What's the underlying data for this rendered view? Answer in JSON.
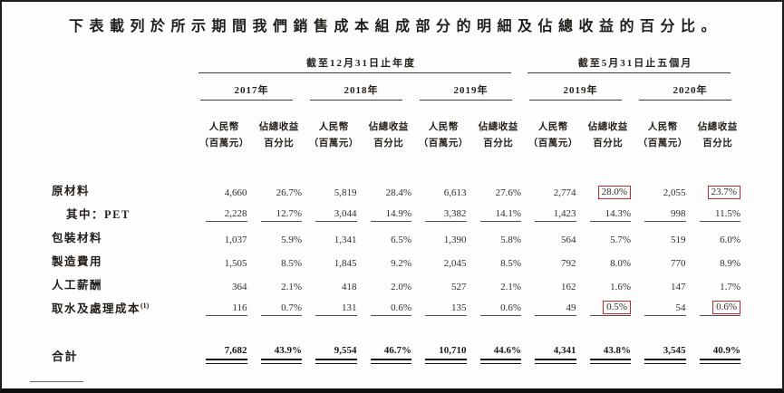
{
  "page": {
    "title": "下表載列於所示期間我們銷售成本組成部分的明細及佔總收益的百分比。"
  },
  "table": {
    "groups": [
      {
        "label": "截至12月31日止年度"
      },
      {
        "label": "截至5月31日止五個月"
      }
    ],
    "years": [
      "2017年",
      "2018年",
      "2019年",
      "2019年",
      "2020年"
    ],
    "sub": {
      "rmb1": "人民幣",
      "rmb2": "（百萬元）",
      "pct1": "佔總收益",
      "pct2": "百分比"
    },
    "rows": [
      {
        "label": "原材料",
        "values": [
          "4,660",
          "26.7%",
          "5,819",
          "28.4%",
          "6,613",
          "27.6%",
          "2,774",
          "28.0%",
          "2,055",
          "23.7%"
        ]
      },
      {
        "label": "其中：PET",
        "values": [
          "2,228",
          "12.7%",
          "3,044",
          "14.9%",
          "3,382",
          "14.1%",
          "1,423",
          "14.3%",
          "998",
          "11.5%"
        ]
      },
      {
        "label": "包裝材料",
        "values": [
          "1,037",
          "5.9%",
          "1,341",
          "6.5%",
          "1,390",
          "5.8%",
          "564",
          "5.7%",
          "519",
          "6.0%"
        ]
      },
      {
        "label": "製造費用",
        "values": [
          "1,505",
          "8.5%",
          "1,845",
          "9.2%",
          "2,045",
          "8.5%",
          "792",
          "8.0%",
          "770",
          "8.9%"
        ]
      },
      {
        "label": "人工薪酬",
        "values": [
          "364",
          "2.1%",
          "418",
          "2.0%",
          "527",
          "2.1%",
          "162",
          "1.6%",
          "147",
          "1.7%"
        ]
      },
      {
        "label": "取水及處理成本",
        "label_sup": "(1)",
        "values": [
          "116",
          "0.7%",
          "131",
          "0.6%",
          "135",
          "0.6%",
          "49",
          "0.5%",
          "54",
          "0.6%"
        ]
      }
    ],
    "total": {
      "label": "合計",
      "values": [
        "7,682",
        "43.9%",
        "9,554",
        "46.7%",
        "10,710",
        "44.6%",
        "4,341",
        "43.8%",
        "3,545",
        "40.9%"
      ]
    }
  },
  "colors": {
    "highlight_box_red": "#c1272d",
    "text": "#2e2a26",
    "rule": "#3b3b3b"
  }
}
